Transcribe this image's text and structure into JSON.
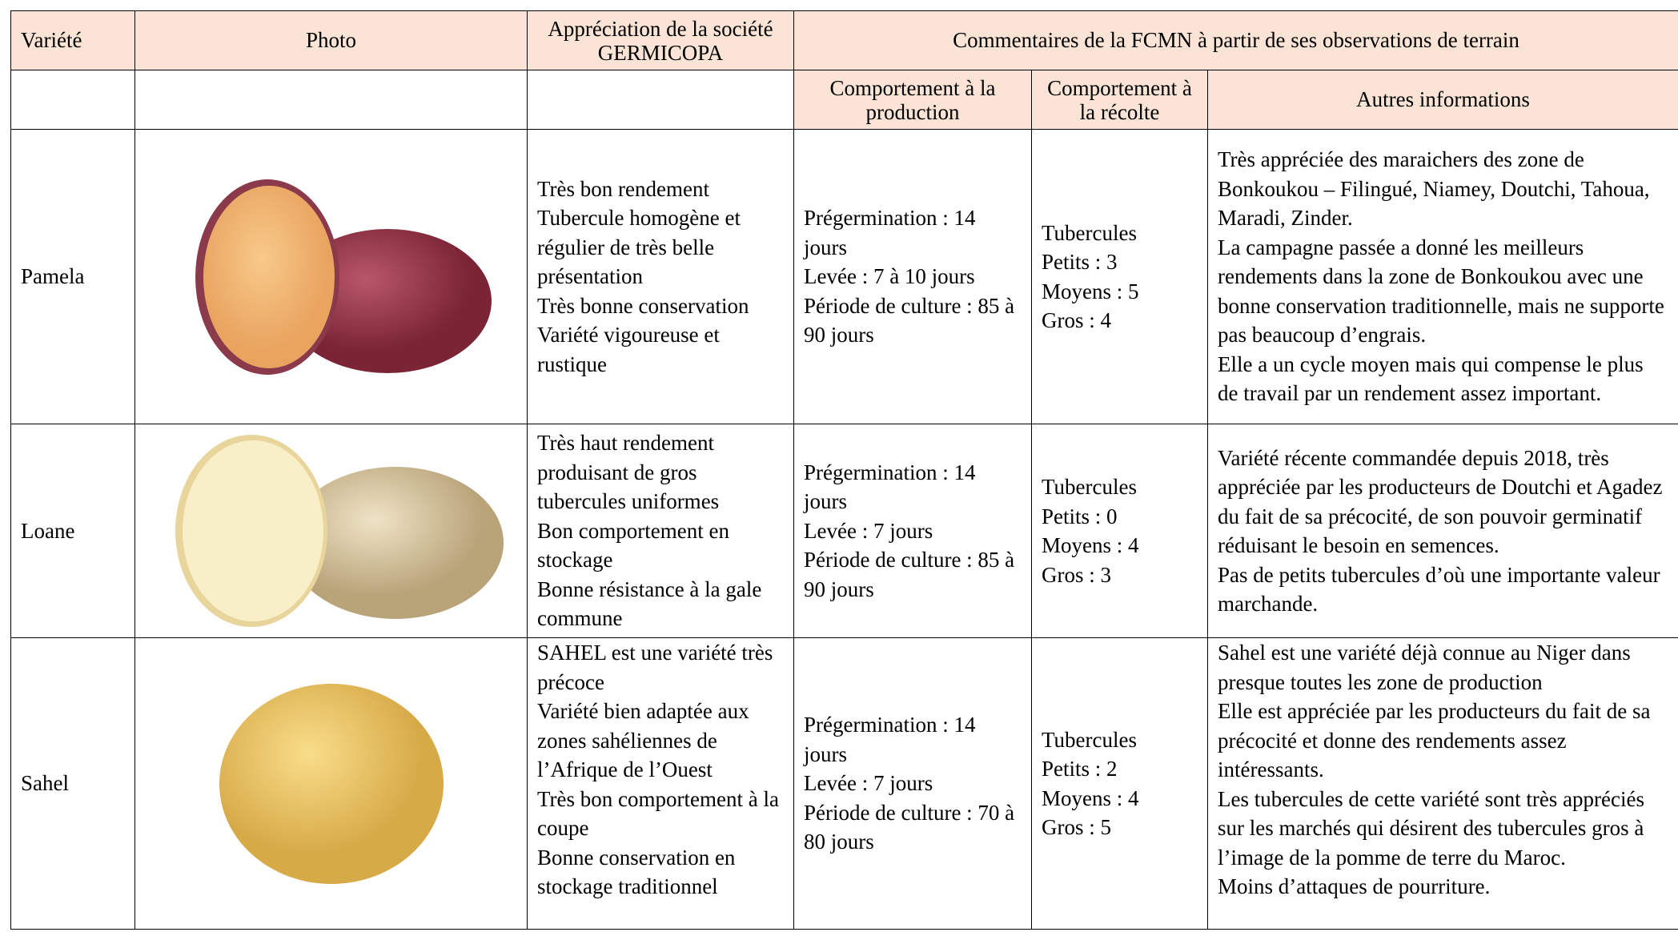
{
  "table": {
    "header": [
      "Variété",
      "Photo",
      "Appréciation de la société GERMICOPA",
      "Commentaires de la FCMN à partir de ses observations de terrain"
    ],
    "subheader": [
      "Comportement à la production",
      "Comportement à la récolte",
      "Autres informations"
    ],
    "rows": [
      {
        "variety": "Pamela",
        "appreciation": [
          "Très bon rendement",
          "Tubercule homogène et régulier de très belle présentation",
          "Très bonne conservation",
          "Variété vigoureuse et rustique"
        ],
        "production": [
          "Prégermination : 14 jours",
          "Levée : 7 à 10 jours",
          "Période de culture : 85 à 90 jours"
        ],
        "harvest": [
          "Tubercules",
          "Petits : 3",
          "Moyens : 5",
          "Gros : 4"
        ],
        "other": [
          "Très appréciée des maraichers des zone de Bonkoukou – Filingué, Niamey, Doutchi, Tahoua, Maradi, Zinder.",
          "La campagne passée a donné les meilleurs rendements dans la zone de Bonkoukou avec une bonne conservation traditionnelle, mais ne supporte pas beaucoup d’engrais.",
          "Elle a un cycle moyen mais qui compense le plus de travail par un rendement assez important."
        ]
      },
      {
        "variety": "Loane",
        "appreciation": [
          "Très haut rendement produisant de gros tubercules uniformes",
          "Bon comportement en stockage",
          "Bonne résistance à la gale commune"
        ],
        "production": [
          "Prégermination : 14 jours",
          "Levée : 7 jours",
          "Période de culture : 85 à 90 jours"
        ],
        "harvest": [
          "Tubercules",
          "Petits : 0",
          "Moyens : 4",
          "Gros : 3"
        ],
        "other": [
          "Variété récente commandée depuis 2018, très appréciée par les producteurs de Doutchi et Agadez du fait de sa précocité, de son pouvoir germinatif réduisant le besoin en semences.",
          "Pas de petits tubercules d’où une importante valeur marchande."
        ]
      },
      {
        "variety": "Sahel",
        "appreciation": [
          "SAHEL est une variété très précoce",
          "Variété bien adaptée aux zones sahéliennes de l’Afrique de l’Ouest",
          "Très bon comportement à la coupe",
          "Bonne conservation en stockage traditionnel"
        ],
        "production": [
          "Prégermination : 14 jours",
          "Levée : 7 jours",
          "Période de culture : 70 à 80 jours"
        ],
        "harvest": [
          "Tubercules",
          "Petits : 2",
          "Moyens : 4",
          "Gros : 5"
        ],
        "other": [
          "Sahel est une variété déjà connue au Niger dans presque toutes les zone de production",
          "Elle est appréciée par les producteurs du fait de sa précocité et donne des rendements assez intéressants.",
          "Les tubercules de cette variété sont très appréciés sur les marchés qui désirent des tubercules gros à l’image de la pomme de terre du Maroc.",
          "Moins d’attaques de pourriture."
        ]
      }
    ]
  }
}
